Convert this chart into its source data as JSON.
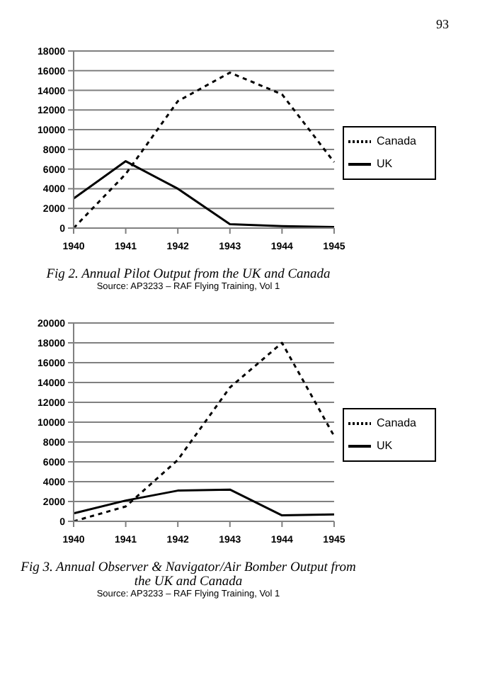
{
  "chart_data": [
    {
      "type": "line",
      "title": "Fig 2. Annual Pilot Output from the UK and Canada",
      "annotations": [
        "93",
        "Source: AP3233 – RAF Flying Training, Vol 1"
      ],
      "categories": [
        "1940",
        "1941",
        "1942",
        "1943",
        "1944",
        "1945"
      ],
      "series": [
        {
          "name": "UK",
          "color": "#000000",
          "line_style": "solid",
          "values": [
            3000,
            6800,
            4000,
            400,
            200,
            100
          ]
        },
        {
          "name": "Canada",
          "color": "#000000",
          "line_style": "dashed",
          "values": [
            0,
            5500,
            12900,
            15800,
            13600,
            6700
          ]
        }
      ],
      "ylim": [
        0,
        18000
      ],
      "yticks": [
        0,
        2000,
        4000,
        6000,
        8000,
        10000,
        12000,
        14000,
        16000,
        18000
      ],
      "grid": "y",
      "legend": "right",
      "marker": "none"
    },
    {
      "type": "line",
      "title": "Fig 3. Annual Observer & Navigator/Air Bomber Output from the UK and Canada",
      "annotations": [
        "Source: AP3233 – RAF Flying Training, Vol 1"
      ],
      "categories": [
        "1940",
        "1941",
        "1942",
        "1943",
        "1944",
        "1945"
      ],
      "series": [
        {
          "name": "UK",
          "color": "#000000",
          "line_style": "solid",
          "values": [
            800,
            2100,
            3100,
            3200,
            600,
            700
          ]
        },
        {
          "name": "Canada",
          "color": "#000000",
          "line_style": "dashed",
          "values": [
            0,
            1500,
            6200,
            13500,
            18000,
            8600
          ]
        }
      ],
      "ylim": [
        0,
        20000
      ],
      "yticks": [
        0,
        2000,
        4000,
        6000,
        8000,
        10000,
        12000,
        14000,
        16000,
        18000,
        20000
      ],
      "grid": "y",
      "legend": "right",
      "marker": "none"
    }
  ]
}
